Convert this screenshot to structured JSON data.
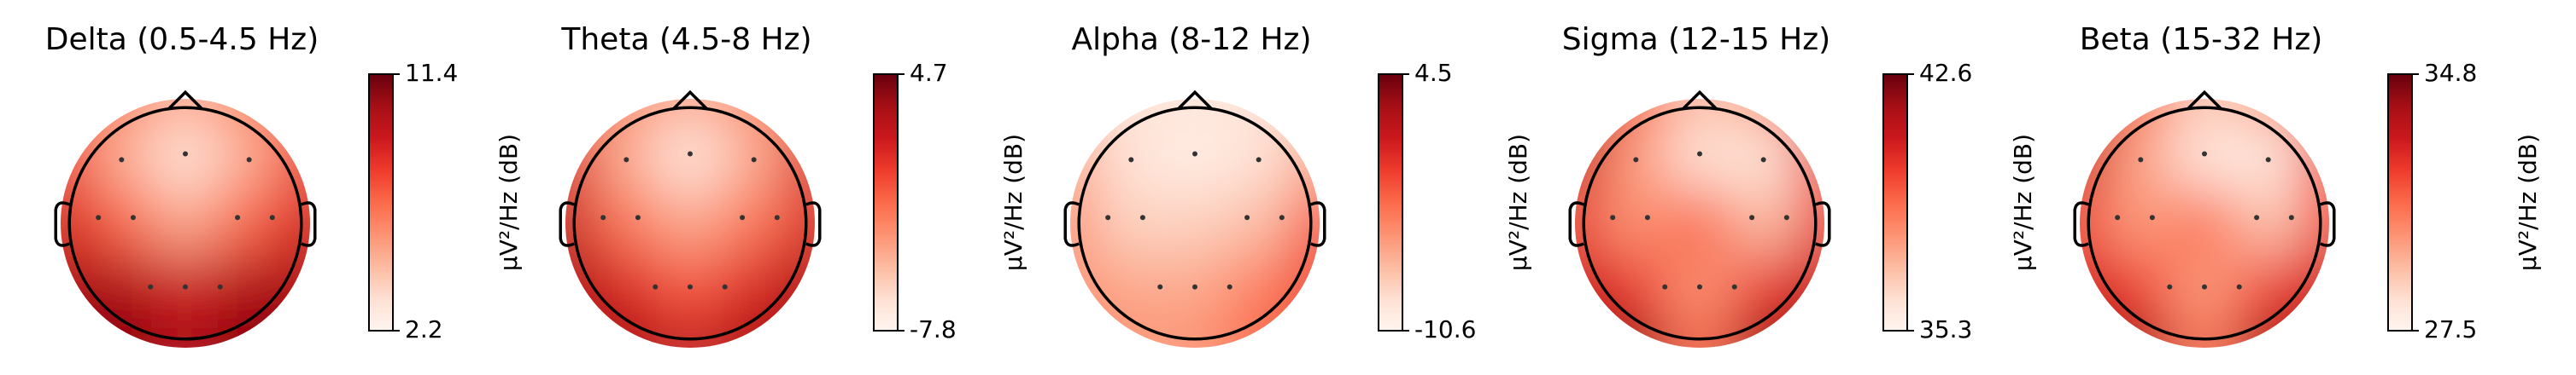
{
  "chart_data": [
    {
      "type": "topomap",
      "title": "Delta (0.5-4.5 Hz)",
      "colorbar_label": "µV²/Hz (dB)",
      "colormap": "Reds",
      "clim": [
        2.2,
        11.4
      ],
      "cticks": [
        2.2,
        11.4
      ],
      "z": [
        [
          8,
          6,
          5,
          6,
          8
        ],
        [
          8,
          5,
          3,
          5,
          8
        ],
        [
          9,
          7,
          5,
          7,
          9
        ],
        [
          10,
          10,
          9,
          10,
          10
        ],
        [
          11,
          11,
          10,
          11,
          11
        ]
      ]
    },
    {
      "type": "topomap",
      "title": "Theta (4.5-8 Hz)",
      "colorbar_label": "µV²/Hz (dB)",
      "colormap": "Reds",
      "clim": [
        -7.8,
        4.7
      ],
      "cticks": [
        -7.8,
        4.7
      ],
      "z": [
        [
          0,
          -3,
          -4,
          -3,
          0
        ],
        [
          1,
          -4,
          -7,
          -4,
          1
        ],
        [
          2,
          -2,
          -4,
          -2,
          1
        ],
        [
          3,
          1,
          -1,
          1,
          3
        ],
        [
          4,
          3,
          2,
          3,
          4
        ]
      ]
    },
    {
      "type": "topomap",
      "title": "Alpha (8-12 Hz)",
      "colorbar_label": "µV²/Hz (dB)",
      "colormap": "Reds",
      "clim": [
        -10.6,
        4.5
      ],
      "cticks": [
        -10.6,
        4.5
      ],
      "z": [
        [
          -7,
          -9,
          -9,
          -9,
          -7
        ],
        [
          -6,
          -9,
          -10,
          -9,
          -6
        ],
        [
          -5,
          -8,
          -8,
          -7,
          -2
        ],
        [
          -5,
          -6,
          -6,
          -4,
          -1
        ],
        [
          -4,
          -5,
          -5,
          -3,
          -2
        ]
      ]
    },
    {
      "type": "topomap",
      "title": "Sigma (12-15 Hz)",
      "colorbar_label": "µV²/Hz (dB)",
      "colormap": "Reds",
      "clim": [
        35.3,
        42.6
      ],
      "cticks": [
        35.3,
        42.6
      ],
      "z": [
        [
          42,
          39,
          37,
          38,
          41
        ],
        [
          41,
          38,
          36,
          36,
          40
        ],
        [
          40,
          38,
          39,
          37,
          40
        ],
        [
          41,
          40,
          38,
          40,
          41
        ],
        [
          42,
          42,
          39,
          42,
          42
        ]
      ]
    },
    {
      "type": "topomap",
      "title": "Beta (15-32 Hz)",
      "colorbar_label": "µV²/Hz (dB)",
      "colormap": "Reds",
      "clim": [
        27.5,
        34.8
      ],
      "cticks": [
        27.5,
        34.8
      ],
      "z": [
        [
          34,
          31,
          29,
          30,
          33
        ],
        [
          33,
          30,
          28,
          28,
          32
        ],
        [
          32,
          30,
          31,
          29,
          32
        ],
        [
          33,
          32,
          30,
          32,
          33
        ],
        [
          34,
          34,
          31,
          34,
          34
        ]
      ]
    }
  ]
}
